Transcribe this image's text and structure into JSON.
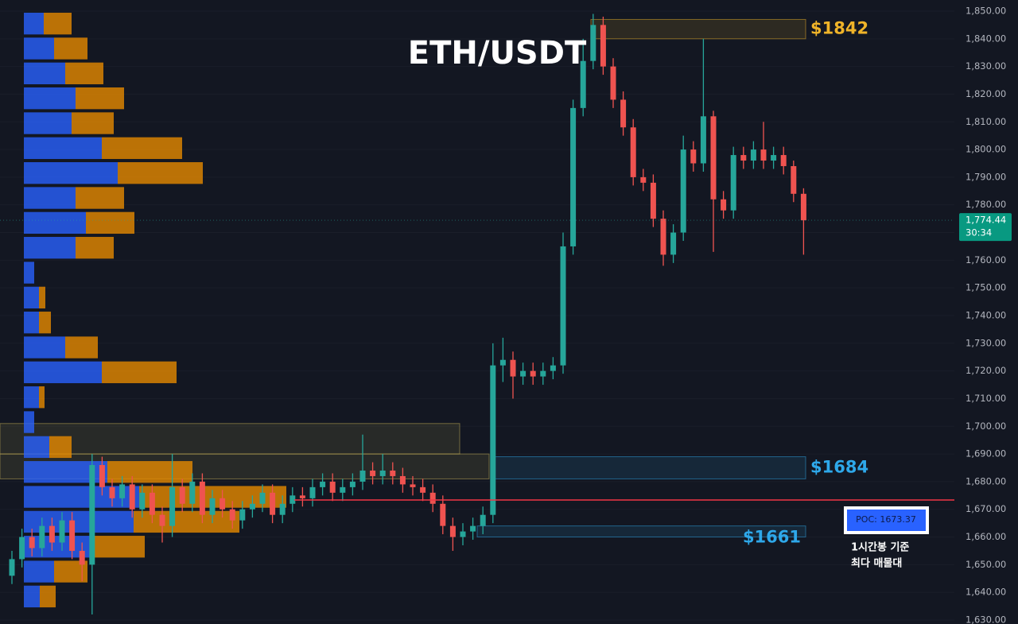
{
  "chart_data": {
    "type": "candlestick",
    "title": "ETH/USDT",
    "ylim": [
      1630,
      1850
    ],
    "yticks": [
      {
        "value": 1630,
        "label": "1,630.00"
      },
      {
        "value": 1640,
        "label": "1,640.00"
      },
      {
        "value": 1650,
        "label": "1,650.00"
      },
      {
        "value": 1660,
        "label": "1,660.00"
      },
      {
        "value": 1670,
        "label": "1,670.00"
      },
      {
        "value": 1680,
        "label": "1,680.00"
      },
      {
        "value": 1690,
        "label": "1,690.00"
      },
      {
        "value": 1700,
        "label": "1,700.00"
      },
      {
        "value": 1710,
        "label": "1,710.00"
      },
      {
        "value": 1720,
        "label": "1,720.00"
      },
      {
        "value": 1730,
        "label": "1,730.00"
      },
      {
        "value": 1740,
        "label": "1,740.00"
      },
      {
        "value": 1750,
        "label": "1,750.00"
      },
      {
        "value": 1760,
        "label": "1,760.00"
      },
      {
        "value": 1770,
        "label": "1,770.00"
      },
      {
        "value": 1780,
        "label": "1,780.00"
      },
      {
        "value": 1790,
        "label": "1,790.00"
      },
      {
        "value": 1800,
        "label": "1,800.00"
      },
      {
        "value": 1810,
        "label": "1,810.00"
      },
      {
        "value": 1820,
        "label": "1,820.00"
      },
      {
        "value": 1830,
        "label": "1,830.00"
      },
      {
        "value": 1840,
        "label": "1,840.00"
      },
      {
        "value": 1850,
        "label": "1,850.00"
      }
    ],
    "up_color": "#26a69a",
    "down_color": "#ef5350",
    "open": [
      1646,
      1652,
      1660,
      1656,
      1664,
      1658,
      1666,
      1655,
      1650,
      1686,
      1678,
      1674,
      1679,
      1670,
      1676,
      1668,
      1664,
      1678,
      1672,
      1680,
      1668,
      1674,
      1670,
      1666,
      1670,
      1672,
      1676,
      1668,
      1672,
      1675,
      1674,
      1678,
      1680,
      1676,
      1678,
      1680,
      1684,
      1682,
      1684,
      1682,
      1679,
      1678,
      1676,
      1672,
      1664,
      1660,
      1662,
      1664,
      1668,
      1722,
      1724,
      1718,
      1720,
      1718,
      1720,
      1722,
      1765,
      1815,
      1832,
      1845,
      1830,
      1818,
      1808,
      1790,
      1788,
      1775,
      1762,
      1770,
      1800,
      1795,
      1812,
      1782,
      1778,
      1798,
      1796,
      1800,
      1796,
      1798,
      1794,
      1784
    ],
    "high": [
      1655,
      1663,
      1663,
      1667,
      1667,
      1669,
      1669,
      1658,
      1690,
      1689,
      1681,
      1682,
      1682,
      1679,
      1679,
      1671,
      1690,
      1681,
      1683,
      1683,
      1677,
      1677,
      1673,
      1673,
      1675,
      1679,
      1679,
      1675,
      1678,
      1678,
      1681,
      1683,
      1683,
      1681,
      1683,
      1697,
      1687,
      1690,
      1687,
      1685,
      1682,
      1681,
      1679,
      1675,
      1667,
      1665,
      1667,
      1671,
      1730,
      1732,
      1727,
      1723,
      1723,
      1723,
      1725,
      1770,
      1818,
      1840,
      1849,
      1848,
      1833,
      1821,
      1811,
      1793,
      1791,
      1778,
      1773,
      1805,
      1803,
      1840,
      1814,
      1785,
      1801,
      1801,
      1803,
      1810,
      1801,
      1801,
      1796,
      1786
    ],
    "low": [
      1643,
      1649,
      1653,
      1653,
      1655,
      1655,
      1652,
      1644,
      1632,
      1675,
      1671,
      1671,
      1667,
      1667,
      1665,
      1658,
      1660,
      1669,
      1669,
      1665,
      1665,
      1667,
      1663,
      1663,
      1667,
      1669,
      1665,
      1665,
      1669,
      1671,
      1671,
      1675,
      1673,
      1673,
      1675,
      1677,
      1679,
      1679,
      1679,
      1676,
      1675,
      1673,
      1669,
      1661,
      1655,
      1657,
      1659,
      1661,
      1665,
      1716,
      1710,
      1715,
      1715,
      1715,
      1717,
      1719,
      1762,
      1812,
      1829,
      1827,
      1815,
      1805,
      1787,
      1785,
      1772,
      1758,
      1759,
      1767,
      1792,
      1792,
      1763,
      1775,
      1775,
      1793,
      1793,
      1793,
      1793,
      1791,
      1781,
      1762
    ],
    "close": [
      1652,
      1660,
      1656,
      1664,
      1658,
      1666,
      1655,
      1650,
      1686,
      1678,
      1674,
      1679,
      1670,
      1676,
      1668,
      1664,
      1678,
      1672,
      1680,
      1668,
      1674,
      1670,
      1666,
      1670,
      1672,
      1676,
      1668,
      1672,
      1675,
      1674,
      1678,
      1680,
      1676,
      1678,
      1680,
      1684,
      1682,
      1684,
      1682,
      1679,
      1678,
      1676,
      1672,
      1664,
      1660,
      1662,
      1664,
      1668,
      1722,
      1724,
      1718,
      1720,
      1718,
      1720,
      1722,
      1765,
      1815,
      1832,
      1845,
      1830,
      1818,
      1808,
      1790,
      1788,
      1775,
      1762,
      1770,
      1800,
      1795,
      1812,
      1782,
      1778,
      1798,
      1796,
      1800,
      1796,
      1798,
      1794,
      1784,
      1774.44
    ],
    "volume_profile": {
      "bins": [
        1850,
        1841,
        1832,
        1823,
        1814,
        1805,
        1796,
        1787,
        1778,
        1769,
        1760,
        1751,
        1742,
        1733,
        1724,
        1715,
        1706,
        1697,
        1688,
        1679,
        1670,
        1661,
        1652,
        1643,
        1634
      ],
      "series": [
        {
          "color": "#2962ff",
          "values": [
            25,
            38,
            52,
            65,
            60,
            98,
            118,
            65,
            78,
            65,
            13,
            19,
            19,
            52,
            98,
            19,
            13,
            32,
            105,
            145,
            138,
            85,
            38,
            20
          ]
        },
        {
          "color": "#e68a00",
          "values": [
            35,
            42,
            48,
            61,
            53,
            101,
            107,
            61,
            61,
            48,
            0,
            8,
            15,
            41,
            94,
            7,
            0,
            28,
            107,
            185,
            133,
            67,
            42,
            20
          ]
        }
      ]
    },
    "zones": [
      {
        "label": "$1842",
        "high": 1847,
        "low": 1840,
        "color": "#f0b429"
      },
      {
        "label": "$1684",
        "high": 1689,
        "low": 1681,
        "color": "#2ea8ea"
      },
      {
        "label": "$1661",
        "high": 1664,
        "low": 1660,
        "color": "#2ea8ea"
      },
      {
        "high": 1701,
        "low": 1690,
        "color": "#c9b458"
      },
      {
        "high": 1690,
        "low": 1681,
        "color": "#c9b458"
      }
    ],
    "poc": {
      "value": 1673.37,
      "label": "POC: 1673.37",
      "color": "#f23645"
    },
    "annotation": [
      "1시간봉 기준",
      "최다 매물대"
    ],
    "last_price": {
      "value": 1774.44,
      "label": "1,774.44"
    },
    "countdown": "30:34"
  }
}
